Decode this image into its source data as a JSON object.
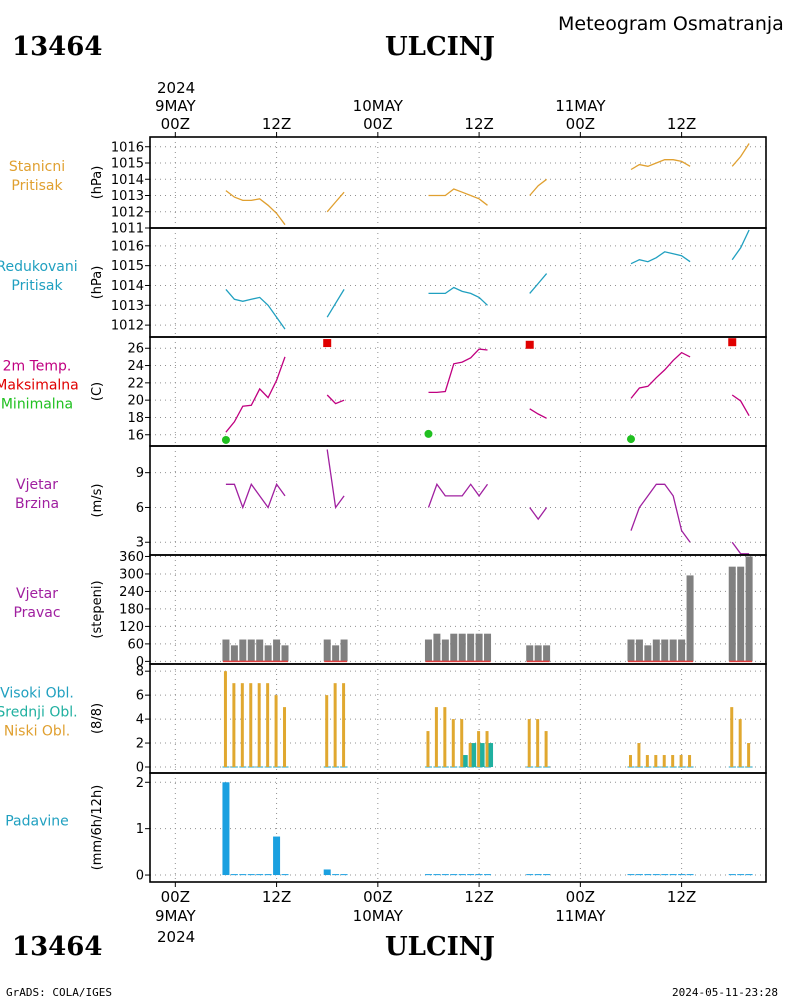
{
  "header": {
    "station_id": "13464",
    "city": "ULCINJ",
    "subtitle": "Meteogram Osmatranja",
    "year": "2024"
  },
  "footer": {
    "station_id": "13464",
    "city": "ULCINJ",
    "credit": "GrADS: COLA/IGES",
    "timestamp": "2024-05-11-23:28"
  },
  "time_axis": {
    "ticks": [
      {
        "hour": 0,
        "label": "00Z",
        "date": "9MAY"
      },
      {
        "hour": 12,
        "label": "12Z"
      },
      {
        "hour": 24,
        "label": "00Z",
        "date": "10MAY"
      },
      {
        "hour": 36,
        "label": "12Z"
      },
      {
        "hour": 48,
        "label": "00Z",
        "date": "11MAY"
      },
      {
        "hour": 60,
        "label": "12Z"
      }
    ],
    "range_hours": [
      -3,
      70
    ]
  },
  "panels": [
    {
      "id": "station-pressure",
      "labels": [
        "Stanicni",
        "Pritisak"
      ],
      "label_colors": [
        "#e0a030",
        "#e0a030"
      ],
      "unit": "(hPa)",
      "ymin": 1011,
      "ymax": 1016.6,
      "yticks": [
        1011,
        1012,
        1013,
        1014,
        1015,
        1016
      ]
    },
    {
      "id": "reduced-pressure",
      "labels": [
        "Redukovani",
        "Pritisak"
      ],
      "label_colors": [
        "#20a0c0",
        "#20a0c0"
      ],
      "unit": "(hPa)",
      "ymin": 1011.4,
      "ymax": 1016.9,
      "yticks": [
        1012,
        1013,
        1014,
        1015,
        1016
      ]
    },
    {
      "id": "temperature",
      "labels": [
        "2m Temp.",
        "Maksimalna",
        "Minimalna"
      ],
      "label_colors": [
        "#c00080",
        "#e00000",
        "#20c020"
      ],
      "unit": "(C)",
      "ymin": 14.7,
      "ymax": 27.3,
      "yticks": [
        16,
        18,
        20,
        22,
        24,
        26
      ]
    },
    {
      "id": "wind-speed",
      "labels": [
        "Vjetar",
        "Brzina"
      ],
      "label_colors": [
        "#a020a0",
        "#a020a0"
      ],
      "unit": "(m/s)",
      "ymin": 1.9,
      "ymax": 11.3,
      "yticks": [
        3,
        6,
        9
      ]
    },
    {
      "id": "wind-direction",
      "labels": [
        "Vjetar",
        "Pravac"
      ],
      "label_colors": [
        "#a020a0",
        "#a020a0"
      ],
      "unit": "(stepeni)",
      "ymin": -9,
      "ymax": 365,
      "yticks": [
        0,
        60,
        120,
        180,
        240,
        300,
        360
      ]
    },
    {
      "id": "cloud-cover",
      "labels": [
        "Visoki Obl.",
        "Srednji Obl.",
        "Niski Obl."
      ],
      "label_colors": [
        "#20a0c0",
        "#20b0a0",
        "#e0a030"
      ],
      "unit": "(8/8)",
      "ymin": -0.5,
      "ymax": 8.6,
      "yticks": [
        0,
        2,
        4,
        6,
        8
      ]
    },
    {
      "id": "precipitation",
      "labels": [
        "Padavine"
      ],
      "label_colors": [
        "#20a0c0"
      ],
      "unit": "(mm/6h/12h)",
      "ymin": -0.15,
      "ymax": 2.2,
      "yticks": [
        0,
        1,
        2
      ]
    }
  ],
  "chart_data": {
    "type": "line",
    "station_pressure": {
      "color": "#e0a030",
      "segments": [
        [
          [
            6,
            1013.3
          ],
          [
            7,
            1012.9
          ],
          [
            8,
            1012.7
          ],
          [
            9,
            1012.7
          ],
          [
            10,
            1012.8
          ],
          [
            11,
            1012.4
          ],
          [
            12,
            1011.9
          ],
          [
            13,
            1011.2
          ]
        ],
        [
          [
            18,
            1012.0
          ],
          [
            19,
            1012.6
          ],
          [
            20,
            1013.2
          ]
        ],
        [
          [
            30,
            1013.0
          ],
          [
            31,
            1013.0
          ],
          [
            32,
            1013.0
          ],
          [
            33,
            1013.4
          ],
          [
            34,
            1013.2
          ],
          [
            35,
            1013.0
          ],
          [
            36,
            1012.8
          ],
          [
            37,
            1012.4
          ]
        ],
        [
          [
            42,
            1013.0
          ],
          [
            43,
            1013.6
          ],
          [
            44,
            1014.0
          ]
        ],
        [
          [
            54,
            1014.6
          ],
          [
            55,
            1014.9
          ],
          [
            56,
            1014.8
          ],
          [
            57,
            1015.0
          ],
          [
            58,
            1015.2
          ],
          [
            59,
            1015.2
          ],
          [
            60,
            1015.1
          ],
          [
            61,
            1014.8
          ]
        ],
        [
          [
            66,
            1014.8
          ],
          [
            67,
            1015.4
          ],
          [
            68,
            1016.2
          ]
        ]
      ]
    },
    "reduced_pressure": {
      "color": "#20a0c0",
      "segments": [
        [
          [
            6,
            1013.8
          ],
          [
            7,
            1013.3
          ],
          [
            8,
            1013.2
          ],
          [
            9,
            1013.3
          ],
          [
            10,
            1013.4
          ],
          [
            11,
            1013.0
          ],
          [
            12,
            1012.4
          ],
          [
            13,
            1011.8
          ]
        ],
        [
          [
            18,
            1012.4
          ],
          [
            19,
            1013.1
          ],
          [
            20,
            1013.8
          ]
        ],
        [
          [
            30,
            1013.6
          ],
          [
            31,
            1013.6
          ],
          [
            32,
            1013.6
          ],
          [
            33,
            1013.9
          ],
          [
            34,
            1013.7
          ],
          [
            35,
            1013.6
          ],
          [
            36,
            1013.4
          ],
          [
            37,
            1013.0
          ]
        ],
        [
          [
            42,
            1013.6
          ],
          [
            43,
            1014.1
          ],
          [
            44,
            1014.6
          ]
        ],
        [
          [
            54,
            1015.1
          ],
          [
            55,
            1015.3
          ],
          [
            56,
            1015.2
          ],
          [
            57,
            1015.4
          ],
          [
            58,
            1015.7
          ],
          [
            59,
            1015.6
          ],
          [
            60,
            1015.5
          ],
          [
            61,
            1015.2
          ]
        ],
        [
          [
            66,
            1015.3
          ],
          [
            67,
            1015.9
          ],
          [
            68,
            1016.8
          ]
        ]
      ]
    },
    "temperature": {
      "color": "#c00080",
      "segments": [
        [
          [
            6,
            16.3
          ],
          [
            7,
            17.5
          ],
          [
            8,
            19.3
          ],
          [
            9,
            19.4
          ],
          [
            10,
            21.3
          ],
          [
            11,
            20.3
          ],
          [
            12,
            22.3
          ],
          [
            13,
            25.0
          ]
        ],
        [
          [
            18,
            20.6
          ],
          [
            19,
            19.6
          ],
          [
            20,
            20.0
          ]
        ],
        [
          [
            30,
            20.9
          ],
          [
            31,
            20.9
          ],
          [
            32,
            21.0
          ],
          [
            33,
            24.2
          ],
          [
            34,
            24.4
          ],
          [
            35,
            24.9
          ],
          [
            36,
            25.9
          ],
          [
            37,
            25.8
          ]
        ],
        [
          [
            42,
            19.0
          ],
          [
            43,
            18.4
          ],
          [
            44,
            17.9
          ]
        ],
        [
          [
            54,
            20.2
          ],
          [
            55,
            21.4
          ],
          [
            56,
            21.6
          ],
          [
            57,
            22.6
          ],
          [
            58,
            23.5
          ],
          [
            59,
            24.6
          ],
          [
            60,
            25.5
          ],
          [
            61,
            25.0
          ]
        ],
        [
          [
            66,
            20.6
          ],
          [
            67,
            19.9
          ],
          [
            68,
            18.2
          ]
        ]
      ]
    },
    "temperature_max": {
      "color": "#e00000",
      "points": [
        [
          18,
          26.6
        ],
        [
          42,
          26.4
        ],
        [
          66,
          26.7
        ]
      ]
    },
    "temperature_min": {
      "color": "#20c020",
      "points": [
        [
          6,
          15.4
        ],
        [
          30,
          16.1
        ],
        [
          54,
          15.5
        ]
      ]
    },
    "wind_speed": {
      "color": "#a020a0",
      "segments": [
        [
          [
            6,
            8
          ],
          [
            7,
            8
          ],
          [
            8,
            6
          ],
          [
            9,
            8
          ],
          [
            10,
            7
          ],
          [
            11,
            6
          ],
          [
            12,
            8
          ],
          [
            13,
            7
          ]
        ],
        [
          [
            18,
            11
          ],
          [
            19,
            6
          ],
          [
            20,
            7
          ]
        ],
        [
          [
            30,
            6
          ],
          [
            31,
            8
          ],
          [
            32,
            7
          ],
          [
            33,
            7
          ],
          [
            34,
            7
          ],
          [
            35,
            8
          ],
          [
            36,
            7
          ],
          [
            37,
            8
          ]
        ],
        [
          [
            42,
            6
          ],
          [
            43,
            5
          ],
          [
            44,
            6
          ]
        ],
        [
          [
            54,
            4
          ],
          [
            55,
            6
          ],
          [
            56,
            7
          ],
          [
            57,
            8
          ],
          [
            58,
            8
          ],
          [
            59,
            7
          ],
          [
            60,
            4
          ],
          [
            61,
            3
          ]
        ],
        [
          [
            66,
            3
          ],
          [
            67,
            2
          ],
          [
            68,
            2
          ]
        ]
      ]
    },
    "wind_direction": {
      "color": "#808080",
      "baseline_color": "#e04040",
      "hours": [
        6,
        7,
        8,
        9,
        10,
        11,
        12,
        13,
        18,
        19,
        20,
        30,
        31,
        32,
        33,
        34,
        35,
        36,
        37,
        42,
        43,
        44,
        54,
        55,
        56,
        57,
        58,
        59,
        60,
        61,
        66,
        67,
        68
      ],
      "values": [
        75,
        55,
        75,
        75,
        75,
        55,
        75,
        55,
        75,
        55,
        75,
        75,
        95,
        75,
        95,
        95,
        95,
        95,
        95,
        55,
        55,
        55,
        75,
        75,
        55,
        75,
        75,
        75,
        75,
        295,
        325,
        325,
        360
      ]
    },
    "cloud_cover": {
      "low_color": "#e0a830",
      "mid_color": "#20b0a0",
      "high_color": "#20a0c0",
      "hours": [
        6,
        7,
        8,
        9,
        10,
        11,
        12,
        13,
        18,
        19,
        20,
        30,
        31,
        32,
        33,
        34,
        35,
        36,
        37,
        42,
        43,
        44,
        54,
        55,
        56,
        57,
        58,
        59,
        60,
        61,
        66,
        67,
        68
      ],
      "low": [
        8,
        7,
        7,
        7,
        7,
        7,
        6,
        5,
        6,
        7,
        7,
        3,
        5,
        5,
        4,
        4,
        2,
        3,
        3,
        4,
        4,
        3,
        1,
        2,
        1,
        1,
        1,
        1,
        1,
        1,
        5,
        4,
        2
      ],
      "mid": [
        0,
        0,
        0,
        0,
        0,
        0,
        0,
        0,
        0,
        0,
        0,
        0,
        0,
        0,
        0,
        1,
        2,
        2,
        2,
        0,
        0,
        0,
        0,
        0,
        0,
        0,
        0,
        0,
        0,
        0,
        0,
        0,
        0
      ]
    },
    "precipitation": {
      "color": "#1aa0e0",
      "hours": [
        6,
        7,
        8,
        9,
        10,
        11,
        12,
        13,
        18,
        19,
        20,
        30,
        31,
        32,
        33,
        34,
        35,
        36,
        37,
        42,
        43,
        44,
        54,
        55,
        56,
        57,
        58,
        59,
        60,
        61,
        66,
        67,
        68
      ],
      "values": [
        2.0,
        0.02,
        0.02,
        0.02,
        0.02,
        0.02,
        0.83,
        0.02,
        0.12,
        0.02,
        0.02,
        0.02,
        0.02,
        0.02,
        0.02,
        0.02,
        0.02,
        0.02,
        0.02,
        0.02,
        0.02,
        0.02,
        0.02,
        0.02,
        0.02,
        0.02,
        0.02,
        0.02,
        0.02,
        0.02,
        0.02,
        0.02,
        0.02
      ]
    }
  }
}
